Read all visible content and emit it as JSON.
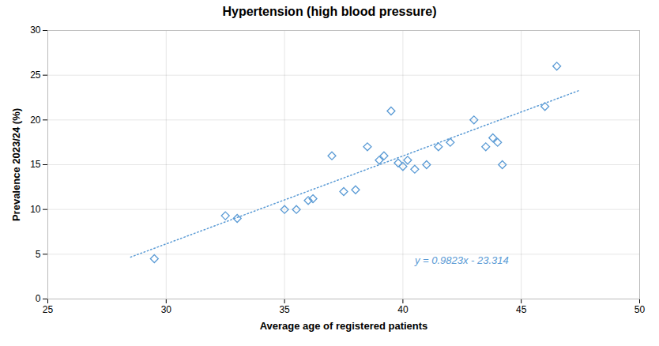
{
  "chart_data": {
    "type": "scatter",
    "title": "Hypertension (high blood pressure)",
    "xlabel": "Average age of registered patients",
    "ylabel": "Prevalence 2023/24 (%)",
    "x": [
      29.5,
      32.5,
      33.0,
      35.0,
      35.5,
      36.0,
      36.2,
      37.0,
      37.5,
      38.0,
      38.5,
      39.0,
      39.2,
      39.5,
      39.8,
      40.0,
      40.2,
      40.5,
      41.0,
      41.5,
      42.0,
      43.0,
      43.5,
      43.8,
      44.0,
      44.2,
      46.0,
      46.5
    ],
    "values": [
      4.5,
      9.3,
      9.0,
      10.0,
      10.0,
      11.0,
      11.2,
      16.0,
      12.0,
      12.2,
      17.0,
      15.5,
      16.0,
      21.0,
      15.2,
      14.8,
      15.5,
      14.5,
      15.0,
      17.0,
      17.5,
      20.0,
      17.0,
      18.0,
      17.5,
      15.0,
      21.5,
      26.0
    ],
    "color": "#5b9bd5",
    "marker": "diamond",
    "trendline": {
      "x": [
        28.5,
        47.5
      ],
      "values": [
        4.68155,
        23.34525
      ],
      "color": "#5b9bd5",
      "line_style": "dotted"
    },
    "annotations": [
      {
        "text": "y = 0.9823x - 23.314",
        "color": "#5b9bd5"
      }
    ],
    "xlim": [
      25,
      50
    ],
    "ylim": [
      0,
      30
    ],
    "xticks": [
      25,
      30,
      35,
      40,
      45,
      50
    ],
    "yticks": [
      0,
      5,
      10,
      15,
      20,
      25,
      30
    ],
    "grid": true
  }
}
